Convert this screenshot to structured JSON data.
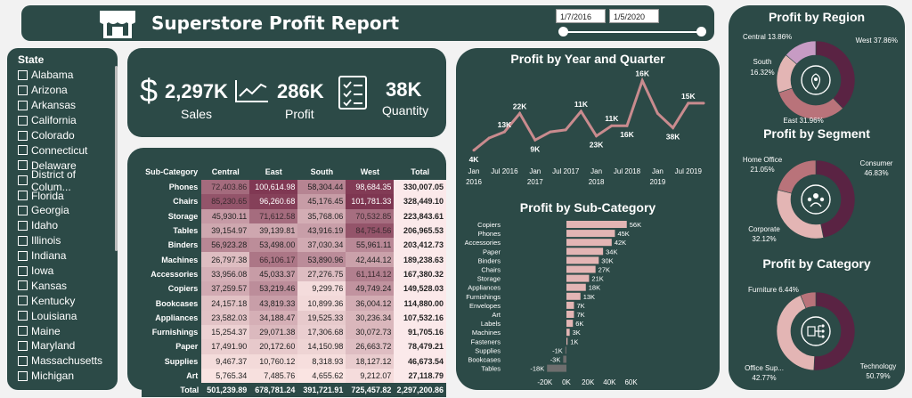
{
  "header": {
    "title": "Superstore Profit Report",
    "date_start": "1/7/2016",
    "date_end": "1/5/2020"
  },
  "state_filter": {
    "title": "State",
    "items": [
      "Alabama",
      "Arizona",
      "Arkansas",
      "California",
      "Colorado",
      "Connecticut",
      "Delaware",
      "District of Colum...",
      "Florida",
      "Georgia",
      "Idaho",
      "Illinois",
      "Indiana",
      "Iowa",
      "Kansas",
      "Kentucky",
      "Louisiana",
      "Maine",
      "Maryland",
      "Massachusetts",
      "Michigan"
    ]
  },
  "kpis": {
    "sales": {
      "value": "2,297K",
      "label": "Sales"
    },
    "profit": {
      "value": "286K",
      "label": "Profit"
    },
    "quantity": {
      "value": "38K",
      "label": "Quantity"
    }
  },
  "matrix": {
    "headers": [
      "Sub-Category",
      "Central",
      "East",
      "South",
      "West",
      "Total"
    ],
    "rows": [
      [
        "Phones",
        "72,403.86",
        "100,614.98",
        "58,304.44",
        "98,684.35",
        "330,007.05"
      ],
      [
        "Chairs",
        "85,230.65",
        "96,260.68",
        "45,176.45",
        "101,781.33",
        "328,449.10"
      ],
      [
        "Storage",
        "45,930.11",
        "71,612.58",
        "35,768.06",
        "70,532.85",
        "223,843.61"
      ],
      [
        "Tables",
        "39,154.97",
        "39,139.81",
        "43,916.19",
        "84,754.56",
        "206,965.53"
      ],
      [
        "Binders",
        "56,923.28",
        "53,498.00",
        "37,030.34",
        "55,961.11",
        "203,412.73"
      ],
      [
        "Machines",
        "26,797.38",
        "66,106.17",
        "53,890.96",
        "42,444.12",
        "189,238.63"
      ],
      [
        "Accessories",
        "33,956.08",
        "45,033.37",
        "27,276.75",
        "61,114.12",
        "167,380.32"
      ],
      [
        "Copiers",
        "37,259.57",
        "53,219.46",
        "9,299.76",
        "49,749.24",
        "149,528.03"
      ],
      [
        "Bookcases",
        "24,157.18",
        "43,819.33",
        "10,899.36",
        "36,004.12",
        "114,880.00"
      ],
      [
        "Appliances",
        "23,582.03",
        "34,188.47",
        "19,525.33",
        "30,236.34",
        "107,532.16"
      ],
      [
        "Furnishings",
        "15,254.37",
        "29,071.38",
        "17,306.68",
        "30,072.73",
        "91,705.16"
      ],
      [
        "Paper",
        "17,491.90",
        "20,172.60",
        "14,150.98",
        "26,663.72",
        "78,479.21"
      ],
      [
        "Supplies",
        "9,467.37",
        "10,760.12",
        "8,318.93",
        "18,127.12",
        "46,673.54"
      ],
      [
        "Art",
        "5,765.34",
        "7,485.76",
        "4,655.62",
        "9,212.07",
        "27,118.79"
      ]
    ],
    "total": [
      "Total",
      "501,239.89",
      "678,781.24",
      "391,721.91",
      "725,457.82",
      "2,297,200.86"
    ]
  },
  "line_chart": {
    "title": "Profit by Year and Quarter",
    "labels": [
      "4K",
      "13K",
      "22K",
      "9K",
      "11K",
      "23K",
      "11K",
      "16K",
      "16K",
      "38K",
      "15K",
      "27K"
    ],
    "x_ticks": [
      {
        "top": "Jan",
        "bottom": "2016"
      },
      {
        "top": "Jul 2016",
        "bottom": ""
      },
      {
        "top": "Jan",
        "bottom": "2017"
      },
      {
        "top": "Jul 2017",
        "bottom": ""
      },
      {
        "top": "Jan",
        "bottom": "2018"
      },
      {
        "top": "Jul 2018",
        "bottom": ""
      },
      {
        "top": "Jan",
        "bottom": "2019"
      },
      {
        "top": "Jul 2019",
        "bottom": ""
      }
    ]
  },
  "bar_chart": {
    "title": "Profit by Sub-Category",
    "x_ticks": [
      "-20K",
      "0K",
      "20K",
      "40K",
      "60K"
    ]
  },
  "region_donut": {
    "title": "Profit by Region",
    "labels": [
      "West 37.86%",
      "Central 13.86%",
      "South",
      "16.32%",
      "East 31.96%"
    ]
  },
  "segment_donut": {
    "title": "Profit by Segment",
    "labels": [
      "Home Office",
      "21.05%",
      "Consumer",
      "46.83%",
      "Corporate",
      "32.12%"
    ]
  },
  "category_donut": {
    "title": "Profit by Category",
    "labels": [
      "Furniture 6.44%",
      "Office Sup...",
      "42.77%",
      "Technology",
      "50.79%"
    ]
  },
  "colors": {
    "panel": "#2c4a47",
    "line": "#c98b8e",
    "bar_pos": "#e3b5b4",
    "bar_neg": "#6e6e6e",
    "donut_dark": "#5a2343",
    "donut_mid": "#b9737a",
    "donut_light": "#e3b5b4"
  },
  "chart_data": [
    {
      "type": "line",
      "title": "Profit by Year and Quarter",
      "x": [
        "2016 Q1",
        "2016 Q2",
        "2016 Q3",
        "2016 Q4",
        "2017 Q1",
        "2017 Q2",
        "2017 Q3",
        "2017 Q4",
        "2018 Q1",
        "2018 Q2",
        "2018 Q3",
        "2018 Q4",
        "2019 Q1",
        "2019 Q2",
        "2019 Q3",
        "2019 Q4"
      ],
      "values": [
        4,
        10,
        13,
        22,
        9,
        13,
        14,
        23,
        11,
        16,
        16,
        38,
        22,
        15,
        27,
        27
      ],
      "ylabel": "",
      "ylim": [
        0,
        40
      ]
    },
    {
      "type": "bar",
      "title": "Profit by Sub-Category",
      "categories": [
        "Copiers",
        "Phones",
        "Accessories",
        "Paper",
        "Binders",
        "Chairs",
        "Storage",
        "Appliances",
        "Furnishings",
        "Envelopes",
        "Art",
        "Labels",
        "Machines",
        "Fasteners",
        "Supplies",
        "Bookcases",
        "Tables"
      ],
      "values": [
        56,
        45,
        42,
        34,
        30,
        27,
        21,
        18,
        13,
        7,
        7,
        6,
        3,
        1,
        -1,
        -3,
        -18
      ],
      "value_labels": [
        "56K",
        "45K",
        "42K",
        "34K",
        "30K",
        "27K",
        "21K",
        "18K",
        "13K",
        "7K",
        "7K",
        "6K",
        "3K",
        "1K",
        "-1K",
        "-3K",
        "-18K"
      ],
      "xlim": [
        -20,
        60
      ]
    },
    {
      "type": "pie",
      "title": "Profit by Region",
      "categories": [
        "West",
        "East",
        "South",
        "Central"
      ],
      "values": [
        37.86,
        31.96,
        16.32,
        13.86
      ]
    },
    {
      "type": "pie",
      "title": "Profit by Segment",
      "categories": [
        "Consumer",
        "Corporate",
        "Home Office"
      ],
      "values": [
        46.83,
        32.12,
        21.05
      ]
    },
    {
      "type": "pie",
      "title": "Profit by Category",
      "categories": [
        "Technology",
        "Office Supplies",
        "Furniture"
      ],
      "values": [
        50.79,
        42.77,
        6.44
      ]
    }
  ]
}
